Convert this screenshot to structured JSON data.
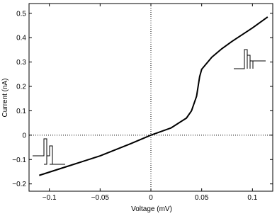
{
  "chart_data": {
    "type": "line",
    "x_label": "Voltage (mV)",
    "y_label": "Current (nA)",
    "x": [
      -0.11,
      -0.08,
      -0.05,
      -0.02,
      0,
      0.02,
      0.035,
      0.04,
      0.045,
      0.048,
      0.05,
      0.06,
      0.07,
      0.08,
      0.1,
      0.115
    ],
    "series": [
      {
        "color": "#000000",
        "values": [
          -0.165,
          -0.125,
          -0.085,
          -0.035,
          0,
          0.03,
          0.07,
          0.1,
          0.16,
          0.24,
          0.27,
          0.32,
          0.355,
          0.385,
          0.44,
          0.485
        ]
      }
    ],
    "xlim": [
      -0.12,
      0.12
    ],
    "ylim": [
      -0.23,
      0.54
    ],
    "xticks": [
      {
        "value": -0.1,
        "label": "−0.1"
      },
      {
        "value": -0.05,
        "label": "−0.05"
      },
      0,
      0.05,
      0.1
    ],
    "yticks": [
      {
        "value": -0.2,
        "label": "−0.2"
      },
      {
        "value": -0.1,
        "label": "−0.1"
      },
      0,
      0.1,
      0.2,
      0.3,
      0.4,
      0.5
    ],
    "zero_lines": true
  }
}
